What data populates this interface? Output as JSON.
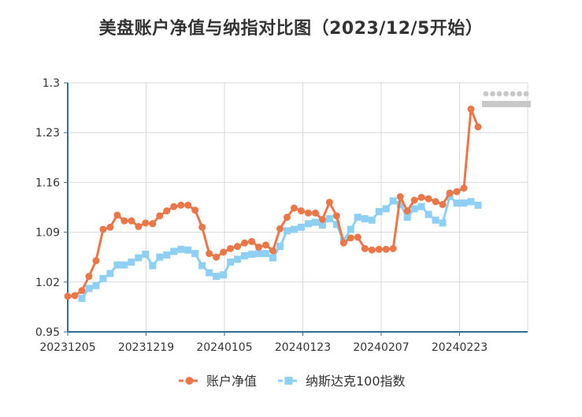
{
  "chart_data": {
    "type": "line",
    "title": "美盘账户净值与纳指对比图（2023/12/5开始）",
    "xlabel": "",
    "ylabel": "",
    "ylim": [
      0.95,
      1.3
    ],
    "yticks": [
      "1.3",
      "1.23",
      "1.16",
      "1.09",
      "1.02",
      "0.95"
    ],
    "xtick_labels": [
      "20231205",
      "20231219",
      "20240105",
      "20240123",
      "20240207",
      "20240223"
    ],
    "grid": true,
    "legend_position": "bottom",
    "colors": {
      "account": "#E8784A",
      "nasdaq": "#8ECFF3",
      "axis": "#2E6E99",
      "grid": "#D9D9D9"
    },
    "series": [
      {
        "name": "账户净值",
        "marker": "circle",
        "values": [
          1.0,
          1.001,
          1.008,
          1.028,
          1.05,
          1.094,
          1.097,
          1.114,
          1.106,
          1.106,
          1.098,
          1.103,
          1.102,
          1.113,
          1.12,
          1.126,
          1.128,
          1.128,
          1.121,
          1.097,
          1.06,
          1.055,
          1.062,
          1.067,
          1.07,
          1.075,
          1.077,
          1.069,
          1.072,
          1.064,
          1.095,
          1.111,
          1.124,
          1.12,
          1.117,
          1.117,
          1.108,
          1.132,
          1.113,
          1.075,
          1.082,
          1.083,
          1.067,
          1.065,
          1.066,
          1.066,
          1.067,
          1.14,
          1.12,
          1.135,
          1.139,
          1.137,
          1.133,
          1.129,
          1.145,
          1.147,
          1.152,
          1.263,
          1.238
        ]
      },
      {
        "name": "纳斯达克100指数",
        "marker": "square",
        "values": [
          null,
          null,
          0.997,
          1.011,
          1.015,
          1.025,
          1.032,
          1.044,
          1.044,
          1.048,
          1.054,
          1.059,
          1.043,
          1.055,
          1.058,
          1.063,
          1.066,
          1.065,
          1.06,
          1.043,
          1.033,
          1.028,
          1.03,
          1.048,
          1.052,
          1.057,
          1.059,
          1.06,
          1.06,
          1.054,
          1.07,
          1.092,
          1.094,
          1.097,
          1.102,
          1.104,
          1.1,
          1.109,
          1.101,
          1.078,
          1.094,
          1.111,
          1.109,
          1.107,
          1.119,
          1.123,
          1.134,
          1.129,
          1.111,
          1.123,
          1.126,
          1.115,
          1.107,
          1.103,
          1.14,
          1.131,
          1.131,
          1.133,
          1.128
        ]
      }
    ]
  }
}
